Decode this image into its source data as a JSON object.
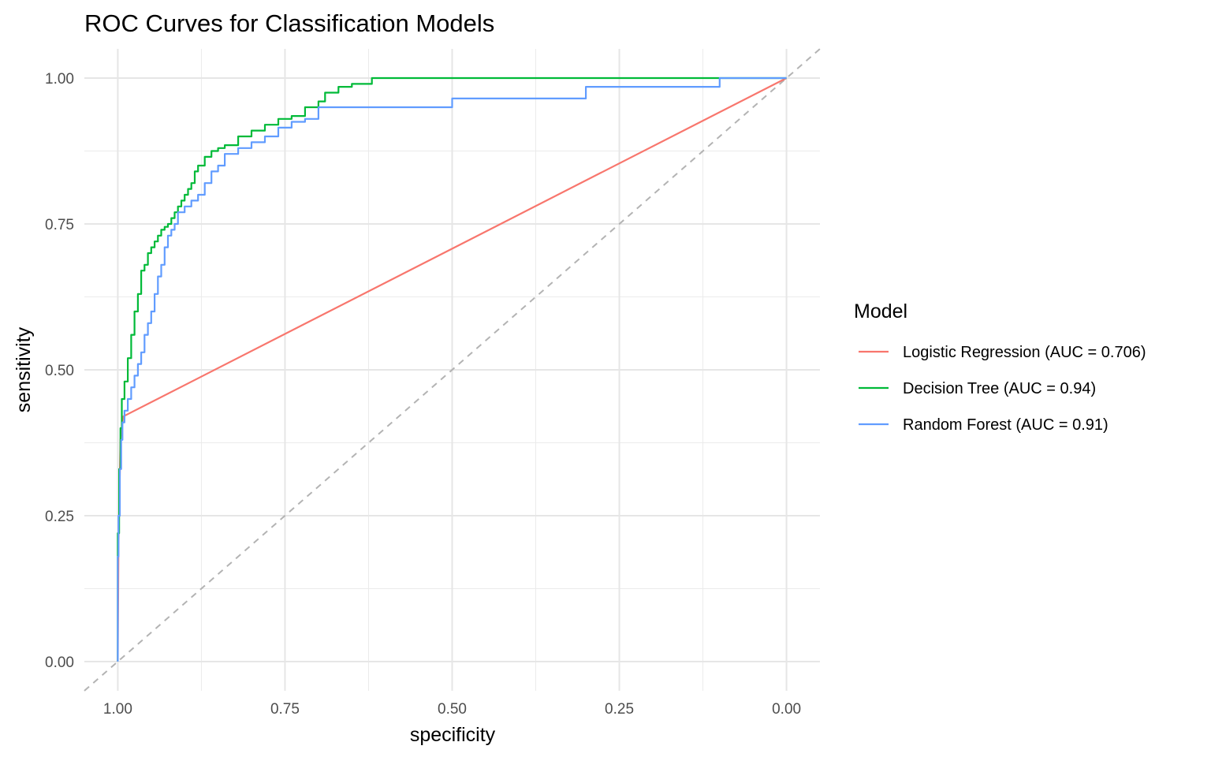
{
  "chart_data": {
    "type": "line",
    "title": "ROC Curves for Classification Models",
    "xlabel": "specificity",
    "ylabel": "sensitivity",
    "x_reversed": true,
    "xlim": [
      1.05,
      -0.05
    ],
    "ylim": [
      -0.05,
      1.05
    ],
    "x_ticks": [
      "1.00",
      "0.75",
      "0.50",
      "0.25",
      "0.00"
    ],
    "x_tick_values": [
      1.0,
      0.75,
      0.5,
      0.25,
      0.0
    ],
    "y_ticks": [
      "0.00",
      "0.25",
      "0.50",
      "0.75",
      "1.00"
    ],
    "y_tick_values": [
      0.0,
      0.25,
      0.5,
      0.75,
      1.0
    ],
    "grid": true,
    "reference_line": {
      "x": [
        1.05,
        -0.05
      ],
      "y": [
        -0.05,
        1.05
      ],
      "style": "dashed",
      "color": "#b3b3b3"
    },
    "legend": {
      "title": "Model",
      "position": "right"
    },
    "series": [
      {
        "name": "Logistic Regression (AUC = 0.706)",
        "color": "#F8766D",
        "x": [
          1.0,
          0.999,
          0.996,
          0.992,
          0.0
        ],
        "y": [
          0.0,
          0.2,
          0.38,
          0.42,
          1.0
        ]
      },
      {
        "name": "Decision Tree (AUC = 0.94)",
        "color": "#00BA38",
        "x": [
          1.0,
          0.998,
          0.996,
          0.994,
          0.99,
          0.985,
          0.98,
          0.975,
          0.97,
          0.965,
          0.96,
          0.955,
          0.95,
          0.945,
          0.94,
          0.935,
          0.93,
          0.925,
          0.92,
          0.915,
          0.91,
          0.905,
          0.9,
          0.895,
          0.89,
          0.885,
          0.88,
          0.87,
          0.86,
          0.85,
          0.84,
          0.82,
          0.8,
          0.78,
          0.76,
          0.74,
          0.72,
          0.7,
          0.69,
          0.67,
          0.65,
          0.62,
          0.6,
          0.58,
          0.4,
          0.2,
          0.0
        ],
        "y": [
          0.0,
          0.22,
          0.33,
          0.4,
          0.45,
          0.48,
          0.52,
          0.56,
          0.6,
          0.63,
          0.67,
          0.68,
          0.7,
          0.71,
          0.72,
          0.73,
          0.74,
          0.745,
          0.75,
          0.76,
          0.77,
          0.78,
          0.79,
          0.8,
          0.81,
          0.82,
          0.84,
          0.85,
          0.865,
          0.875,
          0.88,
          0.885,
          0.9,
          0.91,
          0.92,
          0.93,
          0.935,
          0.95,
          0.96,
          0.975,
          0.985,
          0.99,
          1.0,
          1.0,
          1.0,
          1.0,
          1.0
        ]
      },
      {
        "name": "Random Forest (AUC = 0.91)",
        "color": "#619CFF",
        "x": [
          1.0,
          0.999,
          0.997,
          0.995,
          0.993,
          0.99,
          0.985,
          0.98,
          0.975,
          0.97,
          0.965,
          0.96,
          0.955,
          0.95,
          0.945,
          0.94,
          0.935,
          0.93,
          0.925,
          0.92,
          0.915,
          0.91,
          0.9,
          0.89,
          0.88,
          0.87,
          0.86,
          0.85,
          0.84,
          0.82,
          0.8,
          0.78,
          0.76,
          0.74,
          0.72,
          0.7,
          0.5,
          0.3,
          0.1,
          0.0
        ],
        "y": [
          0.0,
          0.18,
          0.25,
          0.33,
          0.38,
          0.41,
          0.43,
          0.45,
          0.47,
          0.49,
          0.51,
          0.53,
          0.56,
          0.58,
          0.6,
          0.63,
          0.66,
          0.68,
          0.71,
          0.73,
          0.74,
          0.75,
          0.77,
          0.78,
          0.79,
          0.8,
          0.82,
          0.84,
          0.85,
          0.87,
          0.88,
          0.89,
          0.9,
          0.915,
          0.925,
          0.93,
          0.95,
          0.965,
          0.985,
          1.0
        ]
      }
    ]
  }
}
